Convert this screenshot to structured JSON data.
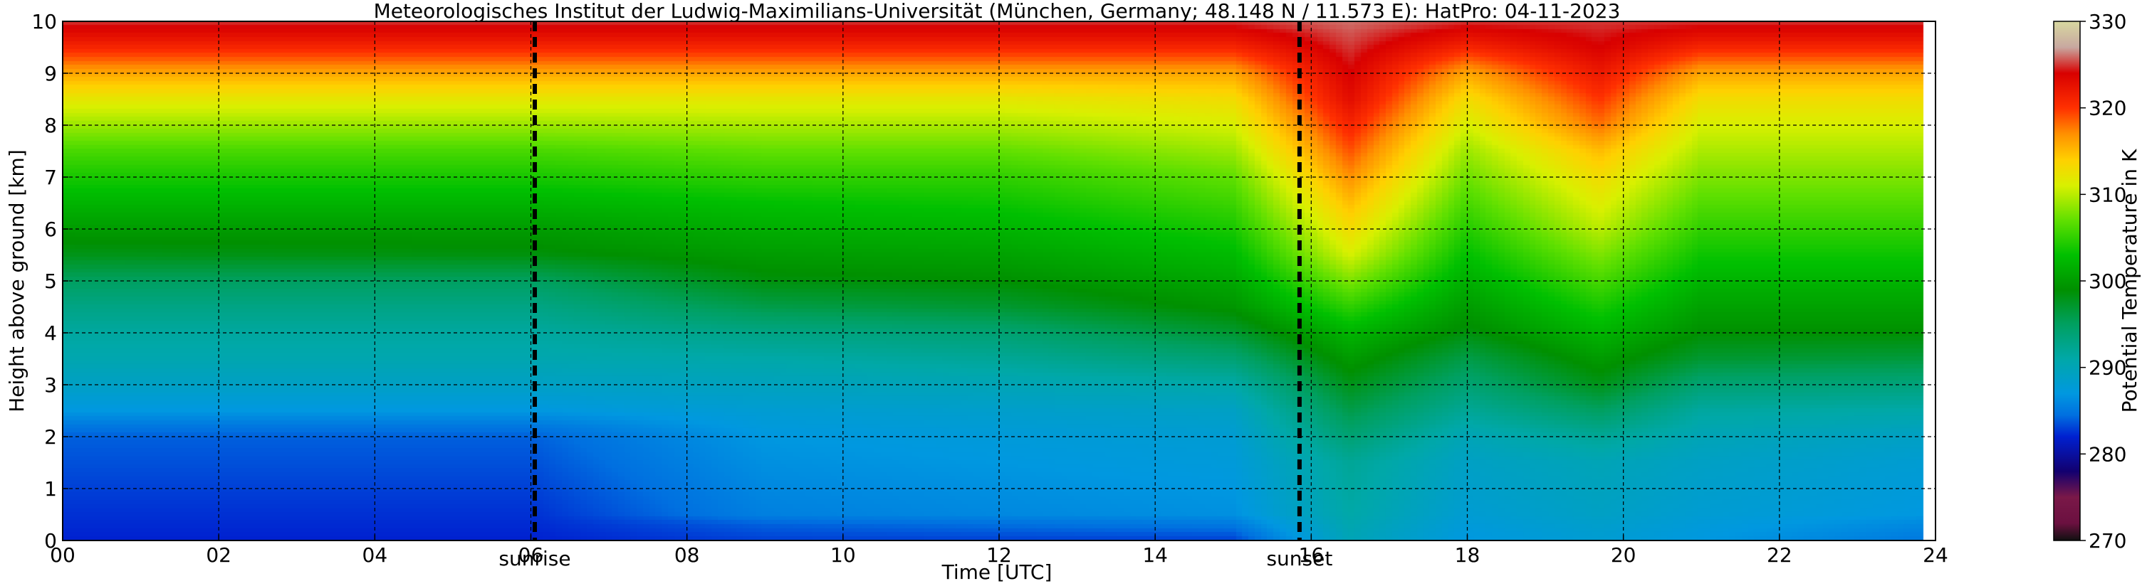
{
  "chart_data": {
    "type": "heatmap",
    "title": "Meteorologisches Institut der Ludwig-Maximilians-Universität (München, Germany; 48.148 N / 11.573 E):    HatPro: 04-11-2023",
    "xlabel": "Time [UTC]",
    "ylabel": "Height above ground [km]",
    "xlim": [
      0,
      24
    ],
    "ylim": [
      0,
      10
    ],
    "x_ticks": [
      0,
      2,
      4,
      6,
      8,
      10,
      12,
      14,
      16,
      18,
      20,
      22,
      24
    ],
    "x_tick_labels": [
      "00",
      "02",
      "04",
      "06",
      "08",
      "10",
      "12",
      "14",
      "16",
      "18",
      "20",
      "22",
      "24"
    ],
    "y_ticks": [
      0,
      1,
      2,
      3,
      4,
      5,
      6,
      7,
      8,
      9,
      10
    ],
    "y_tick_labels": [
      "0",
      "1",
      "2",
      "3",
      "4",
      "5",
      "6",
      "7",
      "8",
      "9",
      "10"
    ],
    "grid": true,
    "colorbar": {
      "label": "Potential Temperature in K",
      "range": [
        270,
        330
      ],
      "ticks": [
        270,
        280,
        290,
        300,
        310,
        320,
        330
      ],
      "tick_labels": [
        "270",
        "280",
        "290",
        "300",
        "310",
        "320",
        "330"
      ],
      "colors": [
        {
          "value": 270,
          "color": "#101010"
        },
        {
          "value": 272,
          "color": "#6b1040"
        },
        {
          "value": 275,
          "color": "#7a1848"
        },
        {
          "value": 278,
          "color": "#120070"
        },
        {
          "value": 282,
          "color": "#0020d0"
        },
        {
          "value": 284.5,
          "color": "#0070e0"
        },
        {
          "value": 287,
          "color": "#0098e0"
        },
        {
          "value": 291,
          "color": "#00a8a8"
        },
        {
          "value": 295,
          "color": "#00a060"
        },
        {
          "value": 299,
          "color": "#009000"
        },
        {
          "value": 303,
          "color": "#00c000"
        },
        {
          "value": 307,
          "color": "#60e000"
        },
        {
          "value": 311,
          "color": "#d8f000"
        },
        {
          "value": 314,
          "color": "#ffd000"
        },
        {
          "value": 317,
          "color": "#ff9000"
        },
        {
          "value": 320,
          "color": "#ff3000"
        },
        {
          "value": 324,
          "color": "#d80000"
        },
        {
          "value": 327,
          "color": "#c8a8a0"
        },
        {
          "value": 330,
          "color": "#d8d8a0"
        }
      ]
    },
    "events": [
      {
        "label": "sunrise",
        "x": 6.05
      },
      {
        "label": "sunset",
        "x": 15.85
      }
    ],
    "data_end_x": 23.85,
    "field_description": "Potential temperature (K) vs time and height; values increase with height.",
    "profiles": [
      {
        "t": 0,
        "z": [
          0,
          0.5,
          1,
          1.5,
          2,
          2.2,
          2.5,
          3,
          3.5,
          4,
          4.5,
          5,
          5.5,
          6,
          6.5,
          7,
          7.5,
          8,
          8.5,
          9,
          9.5,
          10
        ],
        "theta": [
          282,
          282.5,
          283,
          283.5,
          284,
          285,
          287,
          289,
          290.5,
          291.5,
          293,
          295,
          298,
          300,
          302,
          304,
          306,
          309,
          312,
          316,
          321,
          325
        ]
      },
      {
        "t": 6,
        "z": [
          0,
          0.5,
          1,
          1.5,
          2,
          2.2,
          2.5,
          3,
          3.5,
          4,
          4.5,
          5,
          5.5,
          6,
          6.5,
          7,
          7.5,
          8,
          8.5,
          9,
          9.5,
          10
        ],
        "theta": [
          282,
          282.5,
          283,
          283.5,
          284,
          285,
          287,
          289,
          290.5,
          291.5,
          293,
          295,
          298.5,
          300,
          302,
          304,
          306,
          309,
          312,
          316,
          321,
          325
        ]
      },
      {
        "t": 9,
        "z": [
          0,
          0.3,
          0.5,
          1,
          1.5,
          2,
          2.5,
          3,
          3.5,
          4,
          4.5,
          5,
          5.5,
          6,
          6.5,
          7,
          7.5,
          8,
          8.5,
          9,
          9.5,
          10
        ],
        "theta": [
          283,
          284,
          285.5,
          286,
          286.5,
          287,
          288,
          289.5,
          291,
          293,
          296,
          298.5,
          300,
          301.5,
          303,
          305,
          307,
          309.5,
          312,
          316,
          321,
          325
        ]
      },
      {
        "t": 12,
        "z": [
          0,
          0.3,
          0.5,
          1,
          1.5,
          2,
          2.5,
          3,
          3.5,
          4,
          4.5,
          5,
          5.5,
          6,
          6.5,
          7,
          7.5,
          8,
          8.5,
          9,
          9.5,
          10
        ],
        "theta": [
          283,
          284.5,
          286,
          286.5,
          287,
          287.5,
          288.5,
          290,
          292,
          294,
          297,
          299,
          300.5,
          302,
          303.5,
          305,
          307,
          309.5,
          312,
          316,
          321,
          325
        ]
      },
      {
        "t": 15,
        "z": [
          0,
          0.3,
          0.5,
          1,
          1.5,
          2,
          2.5,
          3,
          3.5,
          4,
          4.5,
          5,
          5.5,
          6,
          6.5,
          7,
          7.5,
          8,
          8.5,
          9,
          9.5,
          10
        ],
        "theta": [
          283,
          285,
          286.5,
          287,
          287.5,
          288,
          289,
          291,
          294,
          297,
          299.5,
          301,
          302.5,
          304,
          305.5,
          307,
          309,
          311,
          313,
          316,
          321,
          325
        ]
      },
      {
        "t": 16.5,
        "z": [
          0,
          0.3,
          0.5,
          1,
          1.5,
          2,
          2.5,
          3,
          3.5,
          4,
          4.5,
          5,
          5.5,
          6,
          6.5,
          7,
          7.5,
          8,
          8.5,
          9,
          9.5,
          10
        ],
        "theta": [
          290,
          290.5,
          291,
          291.5,
          292,
          294,
          296,
          298,
          300,
          302,
          305,
          308,
          311,
          313,
          315,
          317,
          319,
          321,
          323,
          324,
          325,
          326
        ]
      },
      {
        "t": 18,
        "z": [
          0,
          0.3,
          0.5,
          1,
          1.5,
          2,
          2.5,
          3,
          3.5,
          4,
          4.5,
          5,
          5.5,
          6,
          6.5,
          7,
          7.5,
          8,
          8.5,
          9,
          9.5,
          10
        ],
        "theta": [
          287,
          287.5,
          288,
          288.5,
          289,
          290,
          292,
          294,
          296,
          298.5,
          300,
          301.5,
          303,
          304.5,
          306,
          307.5,
          309,
          311,
          313,
          316,
          321,
          325
        ]
      },
      {
        "t": 19.7,
        "z": [
          0,
          0.3,
          0.5,
          1,
          1.5,
          2,
          2.5,
          3,
          3.5,
          4,
          4.5,
          5,
          5.5,
          6,
          6.5,
          7,
          7.5,
          8,
          8.5,
          9,
          9.5,
          10
        ],
        "theta": [
          288,
          288.5,
          289,
          289.5,
          290,
          292,
          295,
          298,
          300,
          302,
          304,
          306,
          308,
          310,
          311.5,
          313,
          315,
          318,
          320,
          322,
          324,
          325
        ]
      },
      {
        "t": 21,
        "z": [
          0,
          0.3,
          0.5,
          1,
          1.5,
          2,
          2.5,
          3,
          3.5,
          4,
          4.5,
          5,
          5.5,
          6,
          6.5,
          7,
          7.5,
          8,
          8.5,
          9,
          9.5,
          10
        ],
        "theta": [
          287,
          287.5,
          288,
          288.5,
          289,
          290,
          291.5,
          294,
          297,
          299,
          300.5,
          302,
          303.5,
          305,
          306.5,
          308,
          309.5,
          311,
          313,
          316,
          321,
          325
        ]
      },
      {
        "t": 23.85,
        "z": [
          0,
          0.3,
          0.5,
          1,
          1.5,
          2,
          2.5,
          3,
          3.5,
          4,
          4.5,
          5,
          5.5,
          6,
          6.5,
          7,
          7.5,
          8,
          8.5,
          9,
          9.5,
          10
        ],
        "theta": [
          285,
          286,
          287,
          287.5,
          288,
          289,
          291,
          293.5,
          296.5,
          299,
          300.5,
          302,
          303.5,
          305,
          306.5,
          308,
          309.5,
          311,
          313,
          316,
          321,
          325
        ]
      }
    ]
  }
}
